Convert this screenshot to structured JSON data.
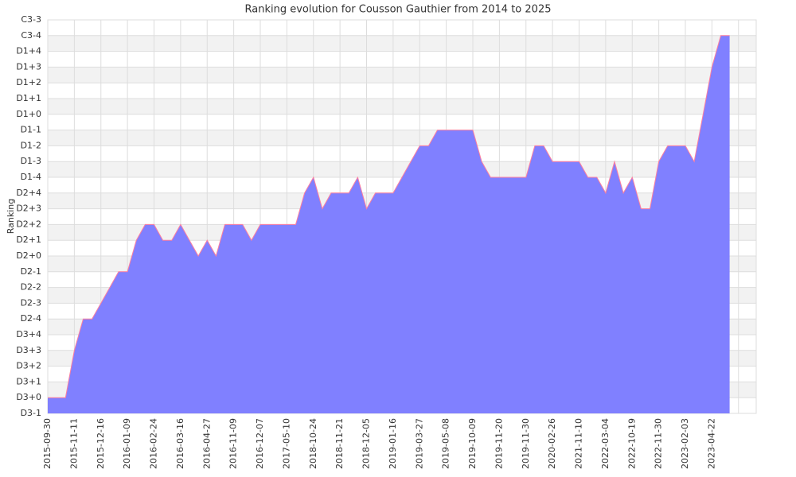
{
  "chart_data": {
    "type": "area",
    "title": "Ranking evolution for Cousson Gauthier from 2014 to 2025",
    "y_label": "Ranking",
    "categories": [
      "2015-09-30",
      null,
      null,
      "2015-11-11",
      null,
      null,
      "2015-12-16",
      null,
      null,
      "2016-01-09",
      null,
      null,
      "2016-02-24",
      null,
      null,
      "2016-03-16",
      null,
      null,
      "2016-04-27",
      null,
      null,
      "2016-11-09",
      null,
      null,
      "2016-12-07",
      null,
      null,
      "2017-05-10",
      null,
      null,
      "2018-10-24",
      null,
      null,
      "2018-11-21",
      null,
      null,
      "2018-12-05",
      null,
      null,
      "2019-01-16",
      null,
      null,
      "2019-03-27",
      null,
      null,
      "2019-05-08",
      null,
      null,
      "2019-10-09",
      null,
      null,
      "2019-11-20",
      null,
      null,
      "2019-11-30",
      null,
      null,
      "2020-02-26",
      null,
      null,
      "2021-11-10",
      null,
      null,
      "2022-03-04",
      null,
      null,
      "2022-10-19",
      null,
      null,
      "2022-11-30",
      null,
      null,
      "2023-02-03",
      null,
      null,
      "2023-04-22",
      null,
      null
    ],
    "values": [
      1,
      1,
      1,
      4,
      6,
      6,
      7,
      8,
      9,
      9,
      11,
      12,
      12,
      11,
      11,
      12,
      11,
      10,
      11,
      10,
      12,
      12,
      12,
      11,
      12,
      12,
      12,
      12,
      12,
      14,
      15,
      13,
      14,
      14,
      14,
      15,
      13,
      14,
      14,
      14,
      15,
      16,
      17,
      17,
      18,
      18,
      18,
      18,
      18,
      16,
      15,
      15,
      15,
      15,
      15,
      17,
      17,
      16,
      16,
      16,
      16,
      15,
      15,
      14,
      16,
      14,
      15,
      13,
      13,
      16,
      17,
      17,
      17,
      16,
      19,
      22,
      24,
      24
    ],
    "fill_color": "#8080ff",
    "line_color": "#ff7f9f",
    "ylim": [
      0,
      25
    ],
    "yticks": [
      {
        "value": 0,
        "label": "D3-1"
      },
      {
        "value": 1,
        "label": "D3+0"
      },
      {
        "value": 2,
        "label": "D3+1"
      },
      {
        "value": 3,
        "label": "D3+2"
      },
      {
        "value": 4,
        "label": "D3+3"
      },
      {
        "value": 5,
        "label": "D3+4"
      },
      {
        "value": 6,
        "label": "D2-4"
      },
      {
        "value": 7,
        "label": "D2-3"
      },
      {
        "value": 8,
        "label": "D2-2"
      },
      {
        "value": 9,
        "label": "D2-1"
      },
      {
        "value": 10,
        "label": "D2+0"
      },
      {
        "value": 11,
        "label": "D2+1"
      },
      {
        "value": 12,
        "label": "D2+2"
      },
      {
        "value": 13,
        "label": "D2+3"
      },
      {
        "value": 14,
        "label": "D2+4"
      },
      {
        "value": 15,
        "label": "D1-4"
      },
      {
        "value": 16,
        "label": "D1-3"
      },
      {
        "value": 17,
        "label": "D1-2"
      },
      {
        "value": 18,
        "label": "D1-1"
      },
      {
        "value": 19,
        "label": "D1+0"
      },
      {
        "value": 20,
        "label": "D1+1"
      },
      {
        "value": 21,
        "label": "D1+2"
      },
      {
        "value": 22,
        "label": "D1+3"
      },
      {
        "value": 23,
        "label": "D1+4"
      },
      {
        "value": 24,
        "label": "C3-4"
      },
      {
        "value": 25,
        "label": "C3-3"
      }
    ],
    "grid": true
  }
}
